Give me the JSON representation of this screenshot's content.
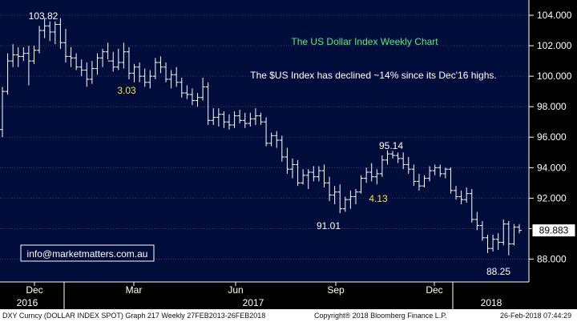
{
  "chart_data": {
    "type": "bar",
    "subtype": "ohlc-weekly",
    "title": "The US Dollar Index Weekly Chart",
    "subtitle": "The $US Index has declined ~14% since its Dec'16 highs.",
    "ylim": [
      86.5,
      105.0
    ],
    "yticks": [
      "104.000",
      "102.000",
      "100.000",
      "98.000",
      "96.000",
      "94.000",
      "92.000",
      "90.000",
      "88.000"
    ],
    "ytick_values": [
      104,
      102,
      100,
      98,
      96,
      94,
      92,
      90,
      88
    ],
    "grid": true,
    "last_value": "89.883",
    "x_month_labels": [
      "Dec",
      "Mar",
      "Jun",
      "Sep",
      "Dec"
    ],
    "x_year_labels": [
      "2016",
      "2017",
      "2018"
    ],
    "bars": [
      {
        "o": 96.5,
        "h": 99.3,
        "l": 96.0,
        "c": 99.0
      },
      {
        "o": 99.0,
        "h": 101.5,
        "l": 98.8,
        "c": 101.0
      },
      {
        "o": 101.0,
        "h": 102.1,
        "l": 100.6,
        "c": 101.4
      },
      {
        "o": 101.4,
        "h": 101.9,
        "l": 100.6,
        "c": 101.3
      },
      {
        "o": 101.3,
        "h": 101.9,
        "l": 101.0,
        "c": 101.5
      },
      {
        "o": 101.5,
        "h": 102.0,
        "l": 99.4,
        "c": 101.0
      },
      {
        "o": 101.0,
        "h": 102.0,
        "l": 100.8,
        "c": 101.7
      },
      {
        "o": 101.7,
        "h": 103.3,
        "l": 101.5,
        "c": 103.0
      },
      {
        "o": 103.0,
        "h": 103.82,
        "l": 102.5,
        "c": 103.3
      },
      {
        "o": 103.3,
        "h": 103.6,
        "l": 102.3,
        "c": 102.9
      },
      {
        "o": 102.9,
        "h": 103.6,
        "l": 102.1,
        "c": 103.4
      },
      {
        "o": 103.4,
        "h": 103.8,
        "l": 101.8,
        "c": 102.2
      },
      {
        "o": 102.2,
        "h": 103.1,
        "l": 100.9,
        "c": 101.3
      },
      {
        "o": 101.3,
        "h": 101.9,
        "l": 100.6,
        "c": 101.2
      },
      {
        "o": 101.2,
        "h": 101.5,
        "l": 100.4,
        "c": 100.6
      },
      {
        "o": 100.6,
        "h": 101.1,
        "l": 100.0,
        "c": 100.4
      },
      {
        "o": 100.4,
        "h": 100.9,
        "l": 99.3,
        "c": 99.8
      },
      {
        "o": 99.8,
        "h": 101.0,
        "l": 99.5,
        "c": 100.5
      },
      {
        "o": 100.5,
        "h": 101.5,
        "l": 100.1,
        "c": 101.2
      },
      {
        "o": 101.2,
        "h": 101.8,
        "l": 100.6,
        "c": 101.6
      },
      {
        "o": 101.6,
        "h": 102.2,
        "l": 101.1,
        "c": 101.0
      },
      {
        "o": 101.0,
        "h": 101.6,
        "l": 100.3,
        "c": 100.6
      },
      {
        "o": 100.6,
        "h": 101.8,
        "l": 100.4,
        "c": 100.9
      },
      {
        "o": 100.9,
        "h": 102.2,
        "l": 100.5,
        "c": 101.6
      },
      {
        "o": 101.6,
        "h": 101.9,
        "l": 99.8,
        "c": 100.2
      },
      {
        "o": 100.2,
        "h": 100.8,
        "l": 99.6,
        "c": 100.6
      },
      {
        "o": 100.6,
        "h": 100.9,
        "l": 99.6,
        "c": 100.0
      },
      {
        "o": 100.0,
        "h": 100.5,
        "l": 99.3,
        "c": 99.6
      },
      {
        "o": 99.6,
        "h": 100.4,
        "l": 99.2,
        "c": 100.0
      },
      {
        "o": 100.0,
        "h": 101.2,
        "l": 99.8,
        "c": 100.9
      },
      {
        "o": 100.9,
        "h": 101.3,
        "l": 100.2,
        "c": 100.6
      },
      {
        "o": 100.6,
        "h": 100.9,
        "l": 99.6,
        "c": 99.8
      },
      {
        "o": 99.8,
        "h": 100.4,
        "l": 99.2,
        "c": 100.1
      },
      {
        "o": 100.1,
        "h": 100.6,
        "l": 99.3,
        "c": 99.6
      },
      {
        "o": 99.6,
        "h": 99.9,
        "l": 98.6,
        "c": 98.9
      },
      {
        "o": 98.9,
        "h": 99.4,
        "l": 98.5,
        "c": 98.8
      },
      {
        "o": 98.8,
        "h": 99.2,
        "l": 98.1,
        "c": 98.4
      },
      {
        "o": 98.4,
        "h": 98.9,
        "l": 98.0,
        "c": 98.6
      },
      {
        "o": 98.6,
        "h": 99.9,
        "l": 98.4,
        "c": 99.3
      },
      {
        "o": 99.3,
        "h": 99.6,
        "l": 96.8,
        "c": 97.1
      },
      {
        "o": 97.1,
        "h": 97.9,
        "l": 96.8,
        "c": 97.3
      },
      {
        "o": 97.3,
        "h": 97.9,
        "l": 96.7,
        "c": 97.5
      },
      {
        "o": 97.5,
        "h": 97.7,
        "l": 96.6,
        "c": 97.0
      },
      {
        "o": 97.0,
        "h": 97.5,
        "l": 96.5,
        "c": 96.8
      },
      {
        "o": 96.8,
        "h": 97.7,
        "l": 96.6,
        "c": 97.4
      },
      {
        "o": 97.4,
        "h": 97.8,
        "l": 96.9,
        "c": 97.1
      },
      {
        "o": 97.1,
        "h": 97.6,
        "l": 96.6,
        "c": 96.9
      },
      {
        "o": 96.9,
        "h": 97.6,
        "l": 96.7,
        "c": 97.2
      },
      {
        "o": 97.2,
        "h": 97.9,
        "l": 96.8,
        "c": 97.4
      },
      {
        "o": 97.4,
        "h": 97.6,
        "l": 96.8,
        "c": 97.0
      },
      {
        "o": 97.0,
        "h": 97.3,
        "l": 95.4,
        "c": 95.6
      },
      {
        "o": 95.6,
        "h": 96.3,
        "l": 95.4,
        "c": 96.1
      },
      {
        "o": 96.1,
        "h": 96.4,
        "l": 95.3,
        "c": 95.8
      },
      {
        "o": 95.8,
        "h": 96.1,
        "l": 94.4,
        "c": 94.7
      },
      {
        "o": 94.7,
        "h": 95.3,
        "l": 93.6,
        "c": 93.9
      },
      {
        "o": 93.9,
        "h": 94.6,
        "l": 93.3,
        "c": 94.2
      },
      {
        "o": 94.2,
        "h": 94.5,
        "l": 92.8,
        "c": 93.0
      },
      {
        "o": 93.0,
        "h": 93.9,
        "l": 92.9,
        "c": 93.5
      },
      {
        "o": 93.5,
        "h": 93.9,
        "l": 92.6,
        "c": 93.7
      },
      {
        "o": 93.7,
        "h": 94.1,
        "l": 93.1,
        "c": 93.4
      },
      {
        "o": 93.4,
        "h": 94.1,
        "l": 93.1,
        "c": 93.8
      },
      {
        "o": 93.8,
        "h": 94.2,
        "l": 92.7,
        "c": 93.0
      },
      {
        "o": 93.0,
        "h": 93.4,
        "l": 91.8,
        "c": 92.2
      },
      {
        "o": 92.2,
        "h": 92.8,
        "l": 91.6,
        "c": 92.4
      },
      {
        "o": 92.4,
        "h": 92.9,
        "l": 91.01,
        "c": 91.3
      },
      {
        "o": 91.3,
        "h": 92.1,
        "l": 91.1,
        "c": 91.9
      },
      {
        "o": 91.9,
        "h": 92.5,
        "l": 91.3,
        "c": 92.1
      },
      {
        "o": 92.1,
        "h": 92.6,
        "l": 91.6,
        "c": 92.4
      },
      {
        "o": 92.4,
        "h": 93.5,
        "l": 92.3,
        "c": 93.3
      },
      {
        "o": 93.3,
        "h": 94.0,
        "l": 93.0,
        "c": 93.7
      },
      {
        "o": 93.7,
        "h": 94.3,
        "l": 93.1,
        "c": 93.4
      },
      {
        "o": 93.4,
        "h": 93.9,
        "l": 92.9,
        "c": 93.6
      },
      {
        "o": 93.6,
        "h": 94.8,
        "l": 93.4,
        "c": 94.5
      },
      {
        "o": 94.5,
        "h": 95.14,
        "l": 94.2,
        "c": 94.9
      },
      {
        "o": 94.9,
        "h": 95.1,
        "l": 94.6,
        "c": 94.8
      },
      {
        "o": 94.8,
        "h": 95.0,
        "l": 94.3,
        "c": 94.6
      },
      {
        "o": 94.6,
        "h": 95.0,
        "l": 93.9,
        "c": 94.2
      },
      {
        "o": 94.2,
        "h": 94.7,
        "l": 93.6,
        "c": 93.9
      },
      {
        "o": 93.9,
        "h": 94.2,
        "l": 92.8,
        "c": 93.1
      },
      {
        "o": 93.1,
        "h": 93.6,
        "l": 92.5,
        "c": 92.8
      },
      {
        "o": 92.8,
        "h": 93.5,
        "l": 92.7,
        "c": 93.3
      },
      {
        "o": 93.3,
        "h": 94.1,
        "l": 93.1,
        "c": 93.8
      },
      {
        "o": 93.8,
        "h": 94.2,
        "l": 93.5,
        "c": 94.0
      },
      {
        "o": 94.0,
        "h": 94.2,
        "l": 93.4,
        "c": 93.6
      },
      {
        "o": 93.6,
        "h": 94.0,
        "l": 93.3,
        "c": 93.9
      },
      {
        "o": 93.9,
        "h": 94.0,
        "l": 92.3,
        "c": 92.5
      },
      {
        "o": 92.5,
        "h": 92.8,
        "l": 91.9,
        "c": 92.1
      },
      {
        "o": 92.1,
        "h": 92.5,
        "l": 91.6,
        "c": 91.9
      },
      {
        "o": 91.9,
        "h": 92.7,
        "l": 91.7,
        "c": 92.3
      },
      {
        "o": 92.3,
        "h": 92.6,
        "l": 90.4,
        "c": 90.6
      },
      {
        "o": 90.6,
        "h": 91.1,
        "l": 89.9,
        "c": 90.2
      },
      {
        "o": 90.2,
        "h": 90.5,
        "l": 89.2,
        "c": 89.4
      },
      {
        "o": 89.4,
        "h": 89.6,
        "l": 88.4,
        "c": 88.7
      },
      {
        "o": 88.7,
        "h": 89.6,
        "l": 88.5,
        "c": 89.3
      },
      {
        "o": 89.3,
        "h": 89.7,
        "l": 88.6,
        "c": 89.1
      },
      {
        "o": 89.1,
        "h": 90.6,
        "l": 88.9,
        "c": 90.3
      },
      {
        "o": 90.3,
        "h": 90.5,
        "l": 88.25,
        "c": 89.0
      },
      {
        "o": 89.0,
        "h": 90.3,
        "l": 88.9,
        "c": 90.1
      },
      {
        "o": 90.1,
        "h": 90.3,
        "l": 89.7,
        "c": 89.883
      }
    ],
    "annotations": [
      {
        "text": "103.82",
        "value": 103.82,
        "color": "white"
      },
      {
        "text": "3.03",
        "color": "yellow"
      },
      {
        "text": "91.01",
        "value": 91.01,
        "color": "white"
      },
      {
        "text": "95.14",
        "value": 95.14,
        "color": "white"
      },
      {
        "text": "4.13",
        "color": "yellow"
      },
      {
        "text": "88.25",
        "value": 88.25,
        "color": "white"
      }
    ],
    "watermark_box": "info@marketmatters.com.au"
  },
  "footer": {
    "left": "DXY Curncy (DOLLAR INDEX SPOT) Graph 217  Weekly 27FEB2013-26FEB2018",
    "middle": "Copyright® 2018 Bloomberg Finance L.P.",
    "right": "26-Feb-2018 07:44:29"
  },
  "colors": {
    "background": "#000c3a",
    "bars": "#ffffff",
    "title": "#4ff07a",
    "highlight": "#ffe236"
  }
}
